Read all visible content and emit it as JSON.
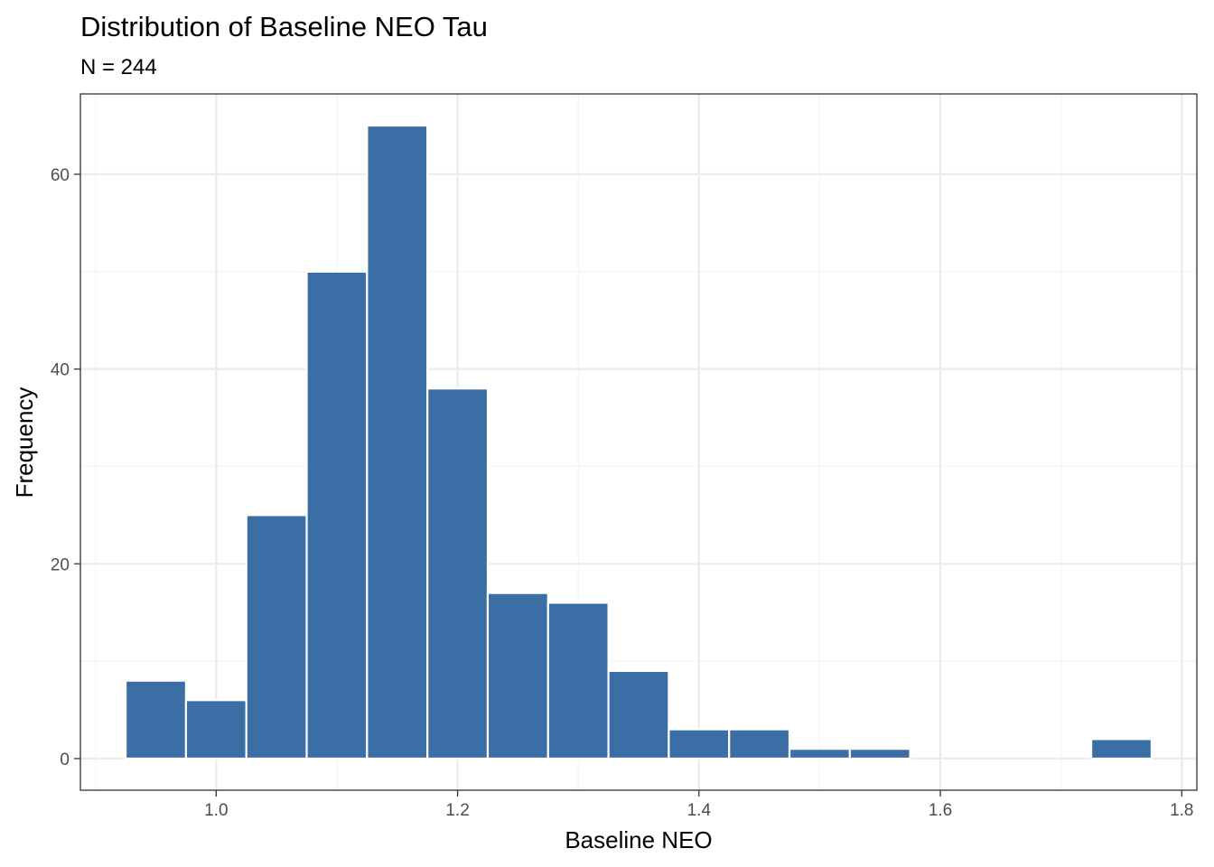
{
  "chart_data": {
    "type": "bar",
    "title": "Distribution of Baseline NEO Tau",
    "subtitle": "N = 244",
    "xlabel": "Baseline NEO",
    "ylabel": "Frequency",
    "bin_width": 0.05,
    "bins": [
      {
        "start": 0.925,
        "end": 0.975,
        "count": 8
      },
      {
        "start": 0.975,
        "end": 1.025,
        "count": 6
      },
      {
        "start": 1.025,
        "end": 1.075,
        "count": 25
      },
      {
        "start": 1.075,
        "end": 1.125,
        "count": 50
      },
      {
        "start": 1.125,
        "end": 1.175,
        "count": 65
      },
      {
        "start": 1.175,
        "end": 1.225,
        "count": 38
      },
      {
        "start": 1.225,
        "end": 1.275,
        "count": 17
      },
      {
        "start": 1.275,
        "end": 1.325,
        "count": 16
      },
      {
        "start": 1.325,
        "end": 1.375,
        "count": 9
      },
      {
        "start": 1.375,
        "end": 1.425,
        "count": 3
      },
      {
        "start": 1.425,
        "end": 1.475,
        "count": 3
      },
      {
        "start": 1.475,
        "end": 1.525,
        "count": 1
      },
      {
        "start": 1.525,
        "end": 1.575,
        "count": 1
      },
      {
        "start": 1.575,
        "end": 1.625,
        "count": 0
      },
      {
        "start": 1.625,
        "end": 1.675,
        "count": 0
      },
      {
        "start": 1.675,
        "end": 1.725,
        "count": 0
      },
      {
        "start": 1.725,
        "end": 1.775,
        "count": 2
      }
    ],
    "xlim": [
      0.8875,
      1.8125
    ],
    "ylim": [
      -3.25,
      68.25
    ],
    "x_ticks": [
      1.0,
      1.2,
      1.4,
      1.6,
      1.8
    ],
    "x_tick_labels": [
      "1.0",
      "1.2",
      "1.4",
      "1.6",
      "1.8"
    ],
    "x_minor_ticks": [
      0.9,
      1.1,
      1.3,
      1.5,
      1.7
    ],
    "y_ticks": [
      0,
      20,
      40,
      60
    ],
    "y_tick_labels": [
      "0",
      "20",
      "40",
      "60"
    ],
    "y_minor_ticks": [
      10,
      30,
      50
    ],
    "grid": true,
    "legend": "none",
    "colors": {
      "bar_fill": "#3A6EA5",
      "bar_outline": "#FFFFFF",
      "grid_major": "#EBEBEB",
      "grid_minor": "#F3F3F3",
      "panel_border": "#333333",
      "tick_text": "#4D4D4D"
    }
  }
}
